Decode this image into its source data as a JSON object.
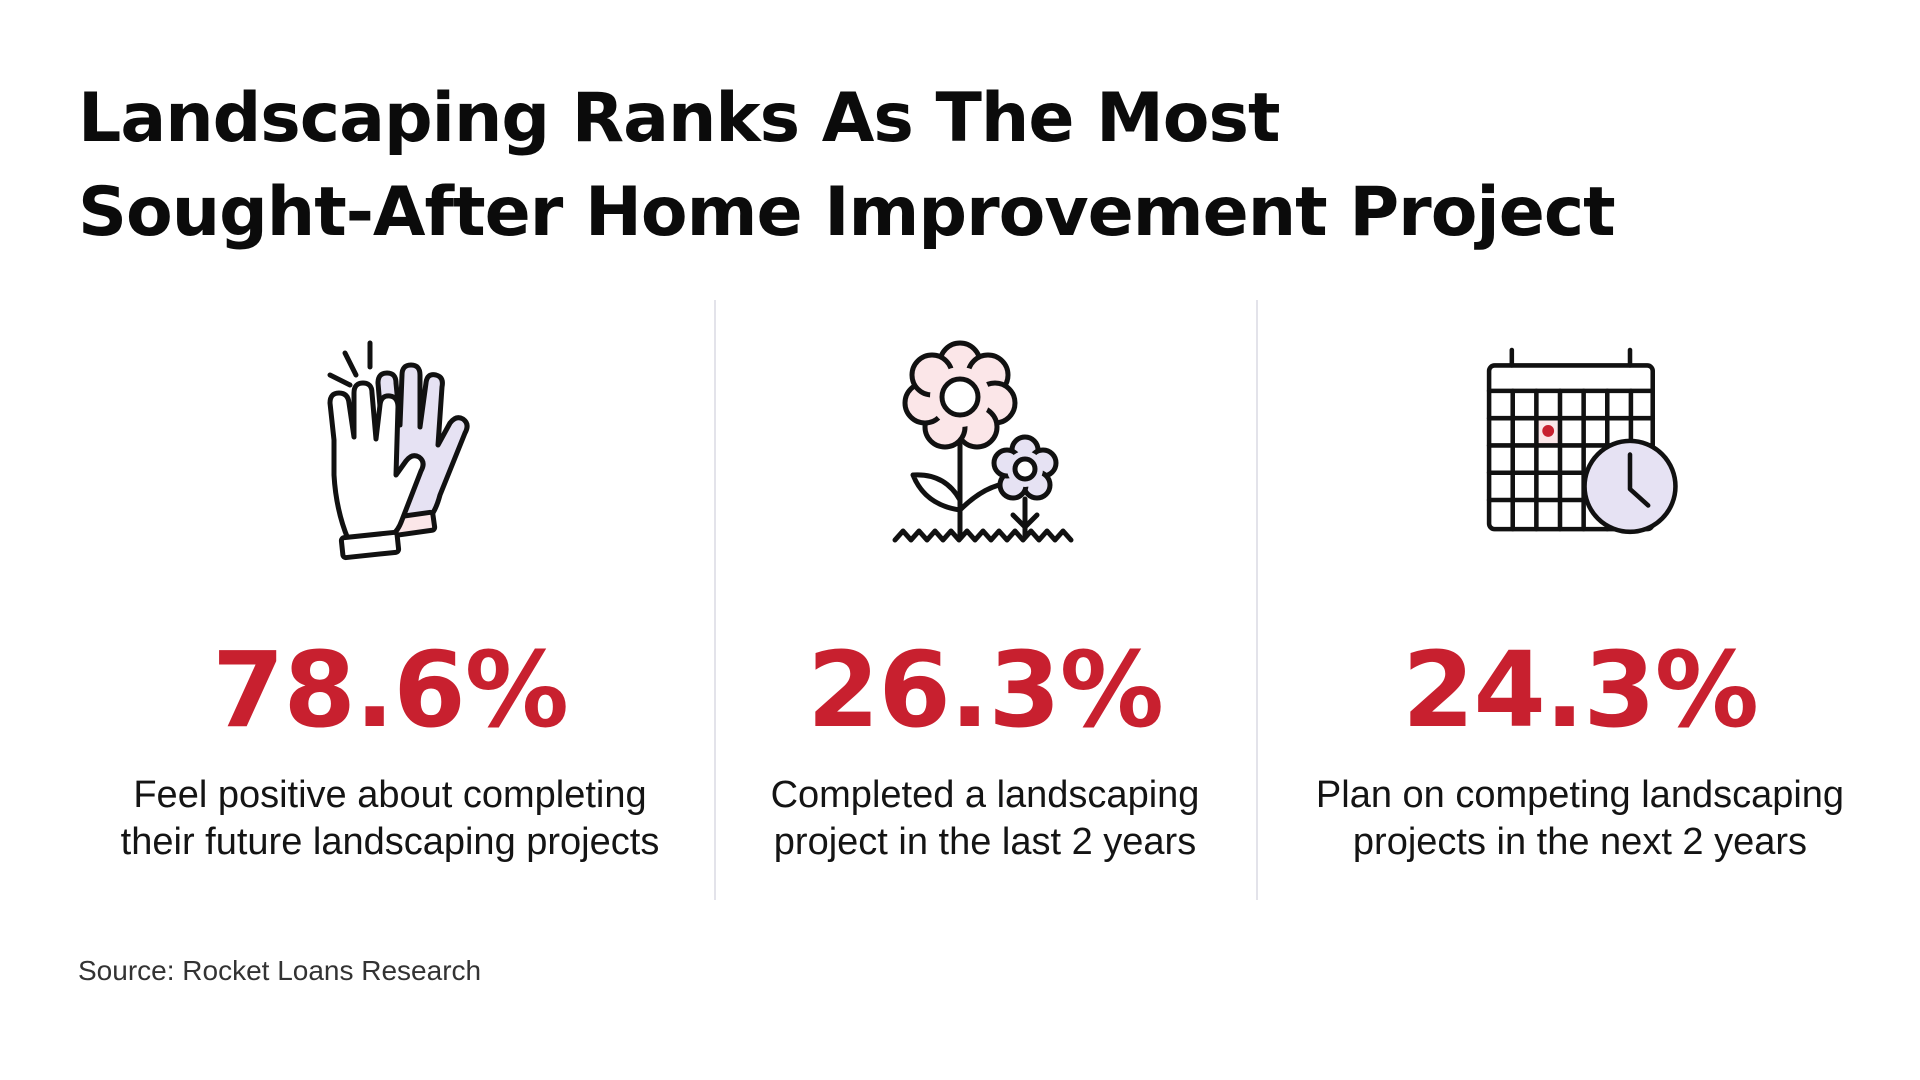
{
  "title": {
    "line1": "Landscaping Ranks As The Most",
    "line2": "Sought-After Home Improvement Project"
  },
  "stats": [
    {
      "icon": "clapping-gloves-icon",
      "value": "78.6%",
      "desc_line1": "Feel positive about completing",
      "desc_line2": "their future landscaping projects"
    },
    {
      "icon": "flowers-icon",
      "value": "26.3%",
      "desc_line1": "Completed a landscaping",
      "desc_line2": "project in the last 2 years"
    },
    {
      "icon": "calendar-clock-icon",
      "value": "24.3%",
      "desc_line1": "Plan on competing landscaping",
      "desc_line2": "projects in the next 2 years"
    }
  ],
  "source": "Source: Rocket Loans Research",
  "colors": {
    "accent": "#c8202f",
    "text": "#111111",
    "icon_fill_pink": "#fbe6e8",
    "icon_fill_lavender": "#e6e2f3",
    "divider": "#e3e3ea"
  }
}
